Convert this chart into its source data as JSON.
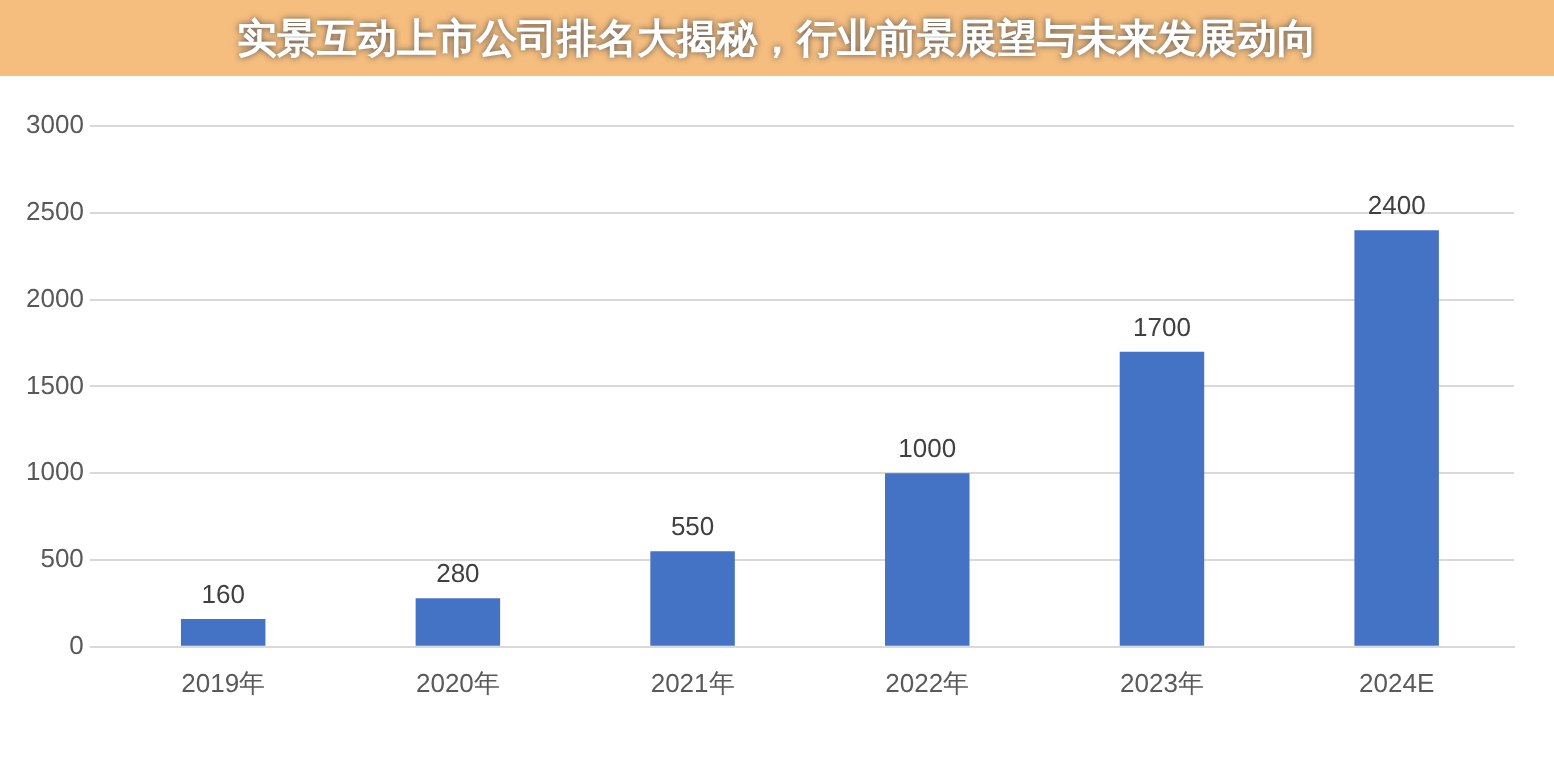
{
  "chart_data": {
    "type": "bar",
    "title": "实景互动上市公司排名大揭秘，行业前景展望与未来发展动向",
    "categories": [
      "2019年",
      "2020年",
      "2021年",
      "2022年",
      "2023年",
      "2024E"
    ],
    "values": [
      160,
      280,
      550,
      1000,
      1700,
      2400
    ],
    "color": "#4472c4",
    "ylim": [
      0,
      3000
    ],
    "yticks": [
      0,
      500,
      1000,
      1500,
      2000,
      2500,
      3000
    ],
    "grid": "y",
    "data_labels": true
  }
}
